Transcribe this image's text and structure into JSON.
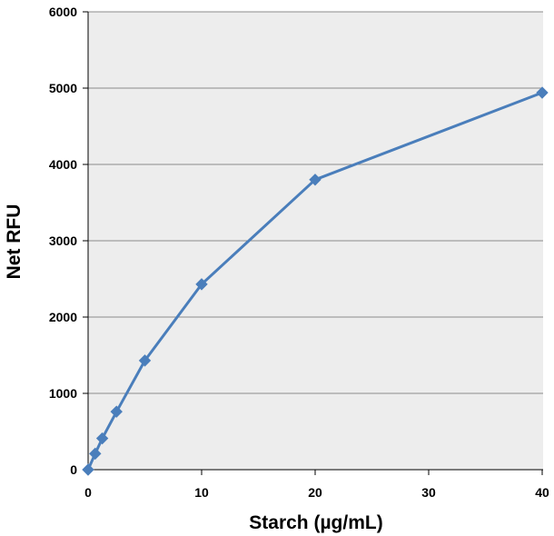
{
  "chart_data": {
    "type": "line",
    "title": "",
    "xlabel": "Starch (µg/mL)",
    "ylabel": "Net RFU",
    "x_tick_labels": [
      "0",
      "10",
      "20",
      "30",
      "40"
    ],
    "y_ticks": [
      0,
      1000,
      2000,
      3000,
      4000,
      5000,
      6000
    ],
    "ylim": [
      0,
      6000
    ],
    "grid": "horizontal",
    "legend": "none",
    "x_axis_note": "category-style spacing: 0, 10, 20, 30, 40 evenly spaced; points beyond 20 follow the printed tick labels",
    "series": [
      {
        "x": [
          0,
          0.625,
          1.25,
          2.5,
          5,
          10,
          20,
          40
        ],
        "y": [
          0,
          210,
          410,
          760,
          1430,
          2430,
          3800,
          4940
        ]
      }
    ],
    "colors": {
      "plot_background": "#ededed",
      "gridline": "#8c8c8c",
      "series": "#4a7ebb",
      "axis": "#000000"
    }
  }
}
